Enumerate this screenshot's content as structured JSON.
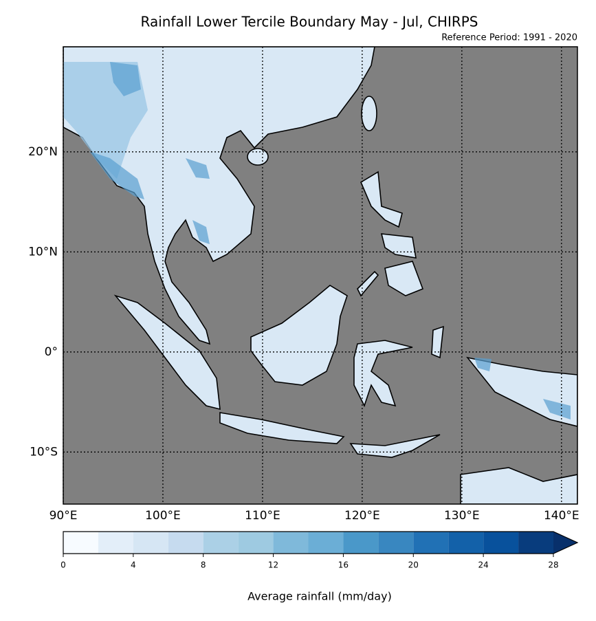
{
  "title": "Rainfall Lower Tercile Boundary May - Jul, CHIRPS",
  "subtitle": "Reference Period: 1991 - 2020",
  "map": {
    "lonlim": [
      90,
      141.6
    ],
    "latlim": [
      -15.2,
      30.5
    ],
    "lon_ticks": [
      {
        "value": 90,
        "label": "90°E"
      },
      {
        "value": 100,
        "label": "100°E"
      },
      {
        "value": 110,
        "label": "110°E"
      },
      {
        "value": 120,
        "label": "120°E"
      },
      {
        "value": 130,
        "label": "130°E"
      },
      {
        "value": 140,
        "label": "140°E"
      }
    ],
    "lat_ticks": [
      {
        "value": 20,
        "label": "20°N"
      },
      {
        "value": 10,
        "label": "10°N"
      },
      {
        "value": 0,
        "label": "0°"
      },
      {
        "value": -10,
        "label": "10°S"
      }
    ],
    "grid": true,
    "ocean_color": "#808080"
  },
  "colorbar": {
    "label": "Average rainfall (mm/day)",
    "ticks": [
      0,
      4,
      8,
      12,
      16,
      20,
      24,
      28
    ],
    "levels": [
      0,
      2,
      4,
      6,
      8,
      10,
      12,
      14,
      16,
      18,
      20,
      22,
      24,
      26,
      28
    ],
    "colors": [
      "#f7fbff",
      "#e3eef9",
      "#d6e6f4",
      "#c6dbef",
      "#abd0e6",
      "#9ecae1",
      "#7fb9da",
      "#6baed6",
      "#4a98c9",
      "#3987c0",
      "#2171b5",
      "#1361a9",
      "#08519c",
      "#083c7d"
    ],
    "extend_color": "#08306b"
  }
}
